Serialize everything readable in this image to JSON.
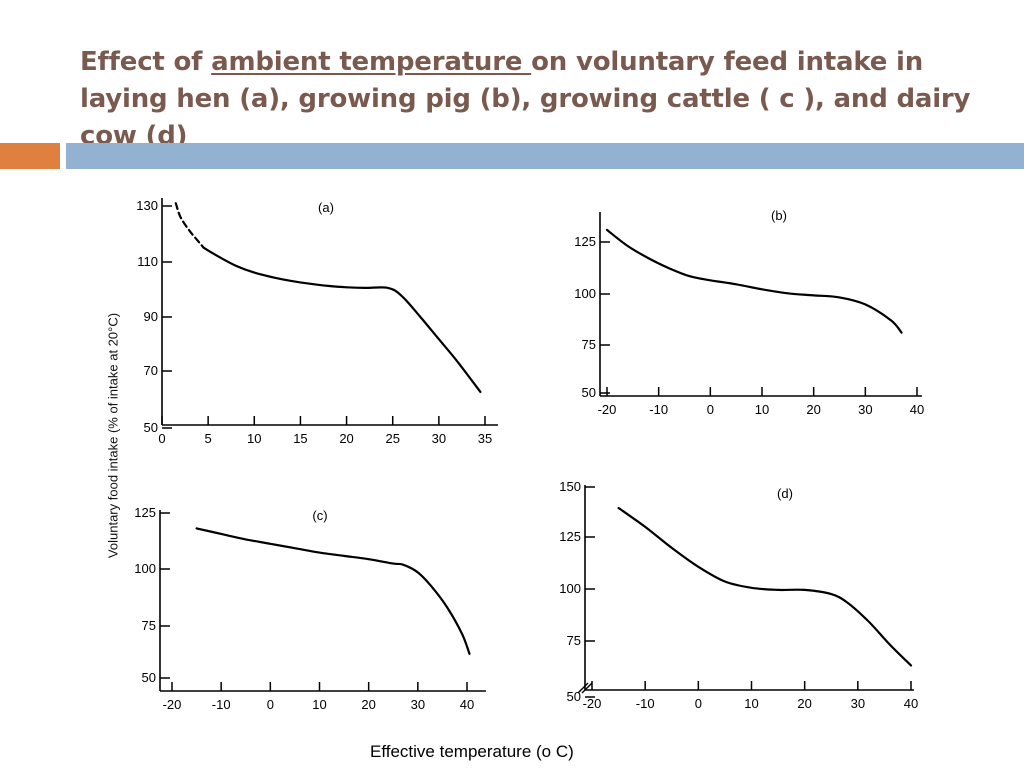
{
  "title": {
    "before": "Effect of ",
    "underlined": "ambient temperature ",
    "after": "on voluntary feed intake in laying hen (a), growing pig (b), growing cattle ( c ), and dairy cow (d)"
  },
  "ylabel": "Voluntary food intake (% of intake at 20°C)",
  "xcaption": "Effective temperature (o C)",
  "colors": {
    "accent_orange": "#e0803f",
    "accent_blue": "#93b2d2",
    "title": "#7a5a4f"
  },
  "chart_data": [
    {
      "type": "line",
      "panel_label": "(a)",
      "xlim": [
        0,
        35
      ],
      "ylim": [
        50,
        130
      ],
      "xticks": [
        0,
        5,
        10,
        15,
        20,
        25,
        30,
        35
      ],
      "yticks": [
        50,
        70,
        90,
        110,
        130
      ],
      "series": [
        {
          "style": "dashed",
          "x": [
            1.5,
            2,
            3,
            4,
            4.5
          ],
          "y": [
            131,
            126,
            121,
            117,
            115
          ]
        },
        {
          "style": "solid",
          "x": [
            4.5,
            6,
            8,
            10,
            12,
            14,
            16,
            18,
            20,
            22,
            24.5,
            26,
            28,
            30,
            32,
            34.5
          ],
          "y": [
            115,
            112,
            108.5,
            106,
            104.3,
            103,
            102,
            101.2,
            100.7,
            100.5,
            100.5,
            97.5,
            90,
            82,
            74,
            63
          ]
        }
      ]
    },
    {
      "type": "line",
      "panel_label": "(b)",
      "xlim": [
        -20,
        40
      ],
      "ylim": [
        50,
        125
      ],
      "xticks": [
        -20,
        -10,
        0,
        10,
        20,
        30,
        40
      ],
      "yticks": [
        50,
        75,
        100,
        125
      ],
      "series": [
        {
          "style": "solid",
          "x": [
            -20,
            -16,
            -12,
            -8,
            -4,
            0,
            5,
            10,
            15,
            20,
            25,
            30,
            35,
            37
          ],
          "y": [
            131,
            123,
            117,
            112,
            108,
            106,
            104,
            101.5,
            99.5,
            98.5,
            97.5,
            94,
            86,
            80
          ]
        }
      ]
    },
    {
      "type": "line",
      "panel_label": "(c)",
      "xlim": [
        -20,
        40
      ],
      "ylim": [
        50,
        125
      ],
      "xticks": [
        -20,
        -10,
        0,
        10,
        20,
        30,
        40
      ],
      "yticks": [
        50,
        75,
        100,
        125
      ],
      "series": [
        {
          "style": "solid",
          "x": [
            -15,
            -10,
            -5,
            0,
            5,
            10,
            15,
            20,
            25,
            27,
            30,
            33,
            36,
            39,
            40.5
          ],
          "y": [
            118,
            115.5,
            113,
            111,
            109,
            107,
            105.5,
            104,
            102,
            101.5,
            98,
            91,
            82,
            70,
            61
          ]
        }
      ]
    },
    {
      "type": "line",
      "panel_label": "(d)",
      "xlim": [
        -20,
        40
      ],
      "ylim": [
        50,
        150
      ],
      "xticks": [
        -20,
        -10,
        0,
        10,
        20,
        30,
        40
      ],
      "yticks": [
        50,
        75,
        100,
        125,
        150
      ],
      "series": [
        {
          "style": "solid",
          "x": [
            -15,
            -10,
            -5,
            0,
            5,
            10,
            15,
            20,
            25,
            28,
            32,
            36,
            40
          ],
          "y": [
            140,
            131,
            121,
            112,
            105,
            102,
            101,
            101,
            99,
            95,
            86,
            75,
            65
          ]
        }
      ]
    }
  ]
}
